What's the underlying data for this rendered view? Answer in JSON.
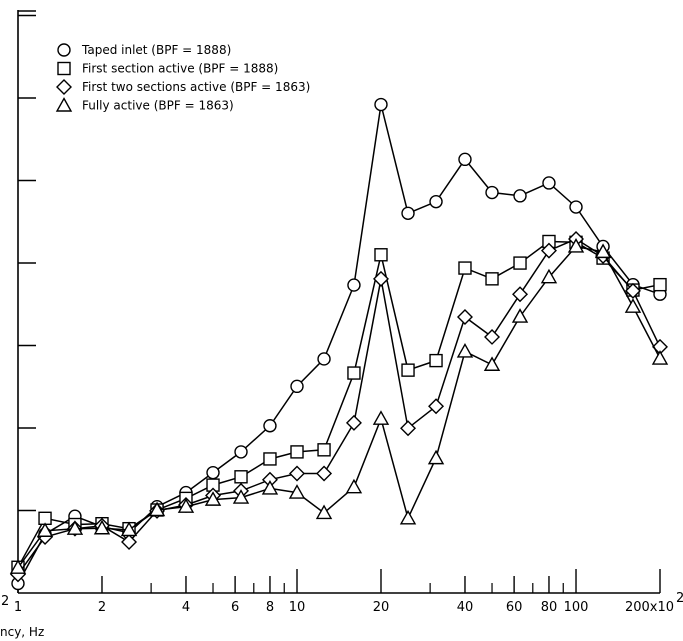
{
  "chart_data": {
    "type": "line",
    "title": "",
    "xlabel": "ncy, Hz",
    "ylabel": "",
    "x_scale": "log",
    "x_unit_note": "x10^2",
    "xlim": [
      1,
      200
    ],
    "grid": false,
    "legend_position": "top-left",
    "x_ticks": [
      1,
      2,
      4,
      6,
      8,
      10,
      20,
      40,
      60,
      80,
      100,
      200
    ],
    "x_tick_labels": [
      "1",
      "2",
      "4",
      "6",
      "8",
      "10",
      "20",
      "40",
      "60",
      "80",
      "100",
      "200x10"
    ],
    "x_tick_exponent_superscript": "2",
    "left_edge_fragment": "2",
    "x": [
      1,
      1.25,
      1.6,
      2,
      2.5,
      3.15,
      4,
      5,
      6.3,
      8,
      10,
      12.5,
      16,
      20,
      25,
      31.5,
      40,
      50,
      63,
      80,
      100,
      125,
      160,
      200
    ],
    "series": [
      {
        "name": "Taped inlet (BPF = 1888)",
        "marker": "circle",
        "values": [
          0.23,
          1.42,
          1.85,
          1.6,
          1.45,
          2.08,
          2.42,
          2.9,
          3.4,
          4.03,
          4.98,
          5.64,
          7.42,
          11.77,
          9.15,
          9.43,
          10.45,
          9.65,
          9.57,
          9.88,
          9.3,
          8.35,
          7.43,
          7.2
        ]
      },
      {
        "name": "First section active (BPF = 1888)",
        "marker": "square",
        "values": [
          0.62,
          1.8,
          1.65,
          1.67,
          1.55,
          2.0,
          2.28,
          2.6,
          2.8,
          3.23,
          3.4,
          3.45,
          5.3,
          8.15,
          5.37,
          5.6,
          7.83,
          7.57,
          7.95,
          8.47,
          8.45,
          8.07,
          7.3,
          7.43
        ]
      },
      {
        "name": "First two sections active (BPF = 1863)",
        "marker": "diamond",
        "values": [
          0.45,
          1.35,
          1.55,
          1.62,
          1.23,
          1.98,
          2.12,
          2.35,
          2.46,
          2.73,
          2.88,
          2.88,
          4.1,
          7.57,
          3.97,
          4.5,
          6.65,
          6.17,
          7.2,
          8.25,
          8.53,
          8.12,
          7.28,
          5.93
        ]
      },
      {
        "name": "Fully active (BPF = 1863)",
        "marker": "triangle",
        "values": [
          0.61,
          1.5,
          1.55,
          1.56,
          1.52,
          2.0,
          2.08,
          2.25,
          2.3,
          2.52,
          2.42,
          1.93,
          2.55,
          4.2,
          1.8,
          3.25,
          5.82,
          5.5,
          6.66,
          7.61,
          8.35,
          8.22,
          6.9,
          5.65
        ]
      }
    ],
    "ylim": [
      0,
      12.5
    ]
  }
}
